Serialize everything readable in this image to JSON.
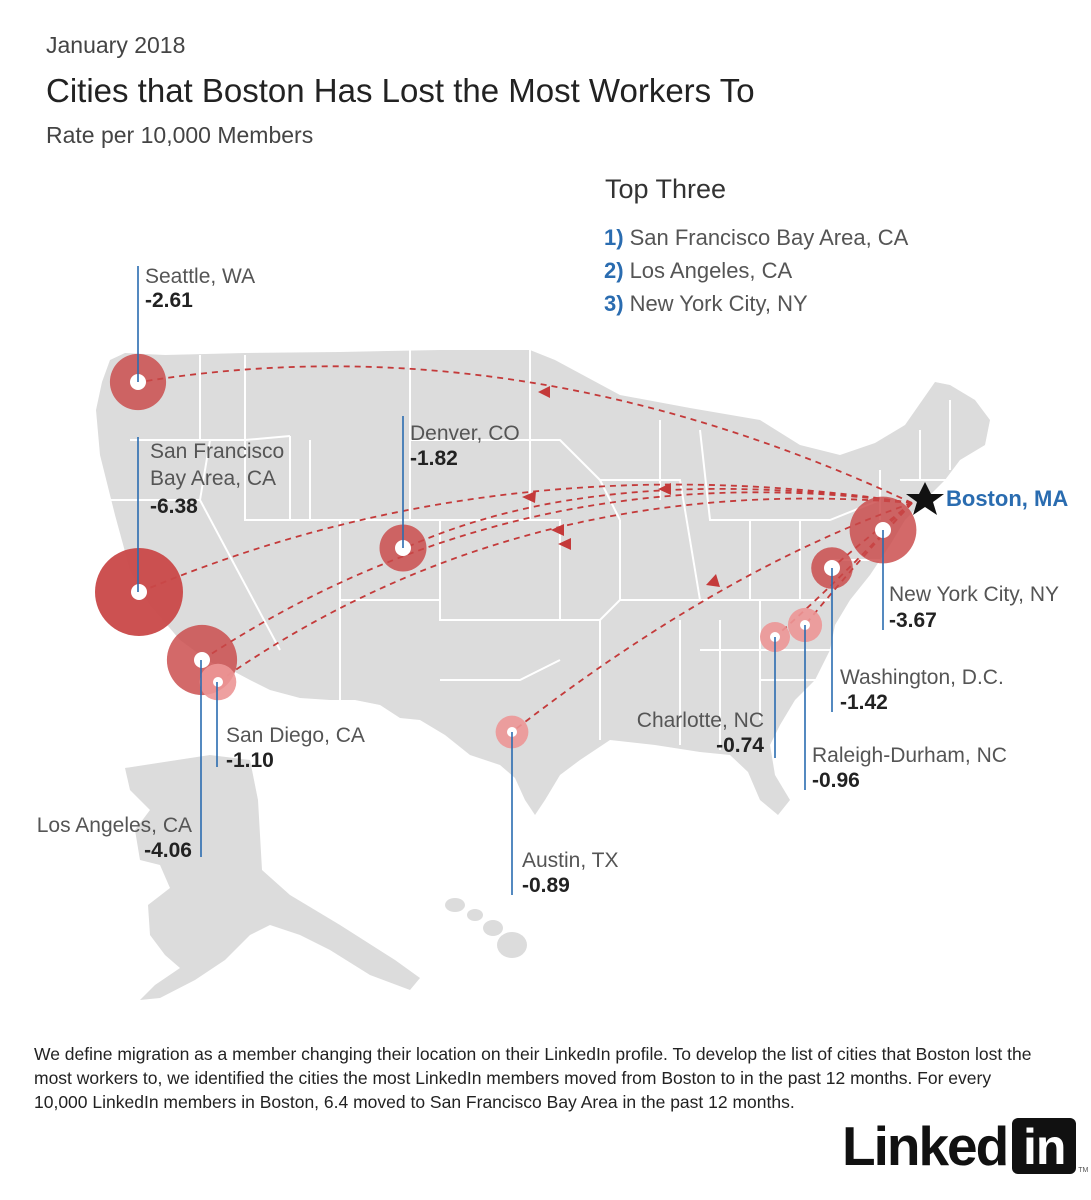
{
  "header": {
    "date": "January 2018",
    "title": "Cities that Boston Has Lost the Most Workers To",
    "subtitle": "Rate per 10,000 Members"
  },
  "top_three": {
    "title": "Top Three",
    "items": [
      {
        "num": "1)",
        "label": "San Francisco Bay Area, CA"
      },
      {
        "num": "2)",
        "label": "Los Angeles, CA"
      },
      {
        "num": "3)",
        "label": "New York City, NY"
      }
    ]
  },
  "origin": {
    "name": "Boston, MA",
    "color": "#2a6cb0"
  },
  "colors": {
    "land": "#dcdcdc",
    "state_border": "#ffffff",
    "flow_line": "#c43a3a",
    "bubble": "#c94848",
    "bubble_light": "#ec9696",
    "leader_line": "#2a6cb0"
  },
  "cities": [
    {
      "name": "Seattle, WA",
      "value": "-2.61",
      "rate": -2.61
    },
    {
      "name": "San Francisco\nBay Area, CA",
      "value": "-6.38",
      "rate": -6.38
    },
    {
      "name": "Denver, CO",
      "value": "-1.82",
      "rate": -1.82
    },
    {
      "name": "Los Angeles, CA",
      "value": "-4.06",
      "rate": -4.06
    },
    {
      "name": "San Diego, CA",
      "value": "-1.10",
      "rate": -1.1
    },
    {
      "name": "Austin, TX",
      "value": "-0.89",
      "rate": -0.89
    },
    {
      "name": "Charlotte, NC",
      "value": "-0.74",
      "rate": -0.74
    },
    {
      "name": "Raleigh-Durham, NC",
      "value": "-0.96",
      "rate": -0.96
    },
    {
      "name": "Washington, D.C.",
      "value": "-1.42",
      "rate": -1.42
    },
    {
      "name": "New York City, NY",
      "value": "-3.67",
      "rate": -3.67
    }
  ],
  "footnote": "We define migration as a member changing their location on their LinkedIn profile. To develop the list of cities that Boston lost the most workers to, we identified the cities the most LinkedIn members moved from Boston to in the past 12 months. For every 10,000 LinkedIn members in Boston, 6.4 moved to San Francisco Bay Area in the past 12 months.",
  "logo": {
    "text": "Linked",
    "box": "in",
    "tm": "TM"
  }
}
